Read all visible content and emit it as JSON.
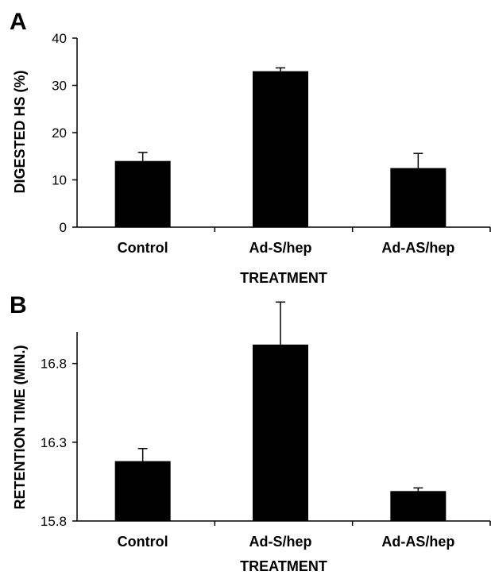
{
  "chart_data": [
    {
      "type": "bar",
      "panel": "A",
      "title": "",
      "xlabel": "TREATMENT",
      "ylabel": "DIGESTED HS (%)",
      "categories": [
        "Control",
        "Ad-S/hep",
        "Ad-AS/hep"
      ],
      "values": [
        14,
        33,
        12.5
      ],
      "errors": [
        1.8,
        0.7,
        3.1
      ],
      "ylim": [
        0,
        40
      ],
      "yticks": [
        "0",
        "10",
        "20",
        "30",
        "40"
      ],
      "ytick_values": [
        0,
        10,
        20,
        30,
        40
      ],
      "bar_color": "#000000",
      "grid": false
    },
    {
      "type": "bar",
      "panel": "B",
      "title": "",
      "xlabel": "TREATMENT",
      "ylabel": "RETENTION TIME (MIN.)",
      "categories": [
        "Control",
        "Ad-S/hep",
        "Ad-AS/hep"
      ],
      "values": [
        16.18,
        16.92,
        15.99
      ],
      "errors": [
        0.08,
        0.27,
        0.02
      ],
      "ylim": [
        15.8,
        17.0
      ],
      "yticks": [
        "15.8",
        "16.3",
        "16.8"
      ],
      "ytick_values": [
        15.8,
        16.3,
        16.8
      ],
      "bar_color": "#000000",
      "grid": false
    }
  ]
}
